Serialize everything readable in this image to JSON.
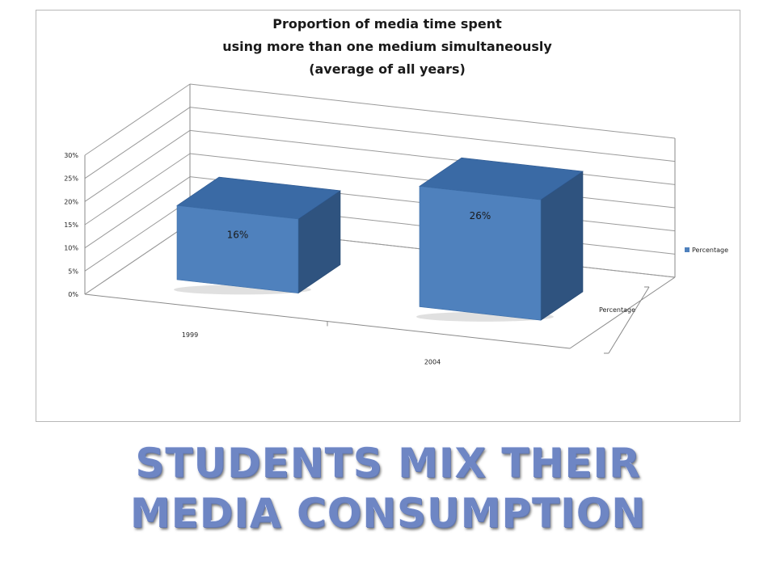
{
  "slide": {
    "heading_line_1": "STUDENTS MIX THEIR",
    "heading_line_2": "MEDIA CONSUMPTION"
  },
  "chart_data": {
    "type": "bar",
    "style": "3d-column",
    "title_lines": [
      "Proportion of media time spent",
      "using more than one medium simultaneously",
      "(average of all years)"
    ],
    "categories": [
      "1999",
      "2004"
    ],
    "series": [
      {
        "name": "Percentage",
        "values": [
          0.16,
          0.26
        ],
        "color": "#4f81bd"
      }
    ],
    "data_labels": [
      "16%",
      "26%"
    ],
    "depth_axis_label": "Percentage",
    "y_ticks": [
      "0%",
      "5%",
      "10%",
      "15%",
      "20%",
      "25%",
      "30%"
    ],
    "ylim": [
      0,
      0.3
    ],
    "grid": true,
    "legend_position": "right",
    "legend_entries": [
      "Percentage"
    ]
  }
}
